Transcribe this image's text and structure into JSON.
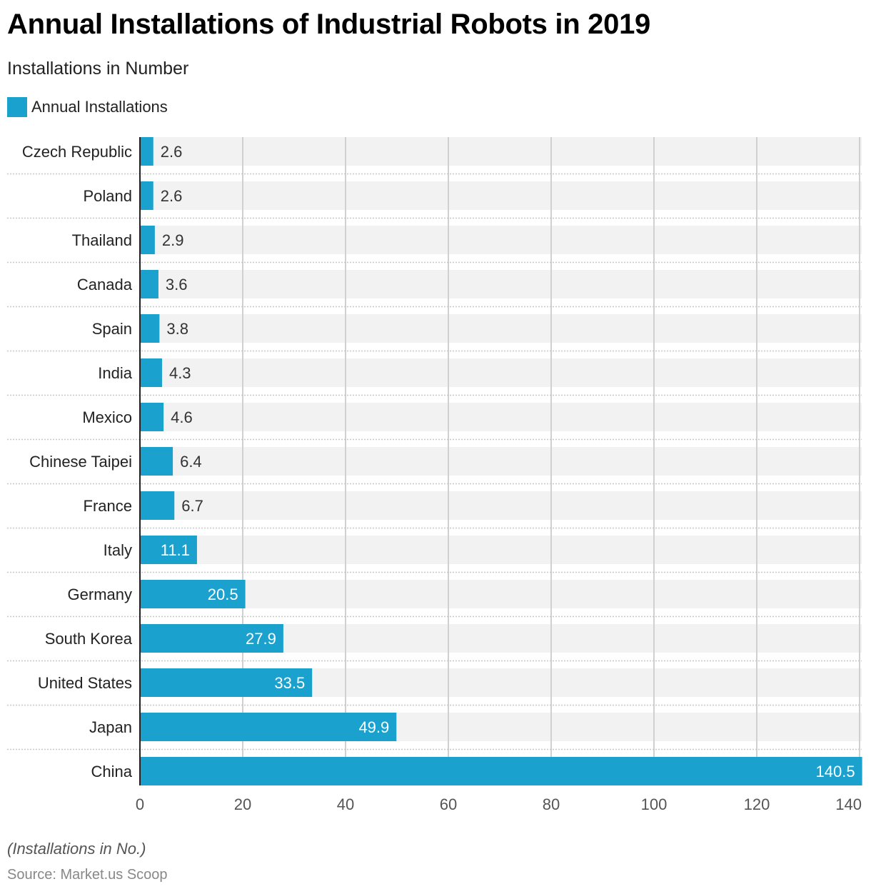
{
  "chart_data": {
    "type": "bar",
    "orientation": "horizontal",
    "title": "Annual Installations of Industrial Robots in 2019",
    "subtitle": "Installations in Number",
    "xlabel": "",
    "ylabel": "",
    "categories": [
      "Czech Republic",
      "Poland",
      "Thailand",
      "Canada",
      "Spain",
      "India",
      "Mexico",
      "Chinese Taipei",
      "France",
      "Italy",
      "Germany",
      "South Korea",
      "United States",
      "Japan",
      "China"
    ],
    "series": [
      {
        "name": "Annual Installations",
        "color": "#1aa1ce",
        "values": [
          2.6,
          2.6,
          2.9,
          3.6,
          3.8,
          4.3,
          4.6,
          6.4,
          6.7,
          11.1,
          20.5,
          27.9,
          33.5,
          49.9,
          140.5
        ],
        "labels": [
          "2.6",
          "2.6",
          "2.9",
          "3.6",
          "3.8",
          "4.3",
          "4.6",
          "6.4",
          "6.7",
          "11.1",
          "20.5",
          "27.9",
          "33.5",
          "49.9",
          "140.5"
        ]
      }
    ],
    "xlim": [
      0,
      140.5
    ],
    "xticks": [
      0,
      20,
      40,
      60,
      80,
      100,
      120,
      140
    ],
    "xtick_labels": [
      "0",
      "20",
      "40",
      "60",
      "80",
      "100",
      "120",
      "140"
    ],
    "grid": true,
    "legend_position": "top-left",
    "note": "(Installations in No.)",
    "source": "Source: Market.us Scoop"
  },
  "colors": {
    "bar": "#1aa1ce",
    "track": "#f2f2f2",
    "grid": "#d0d0d0",
    "axis": "#222222",
    "label_outside": "#333333",
    "label_inside": "#ffffff"
  }
}
